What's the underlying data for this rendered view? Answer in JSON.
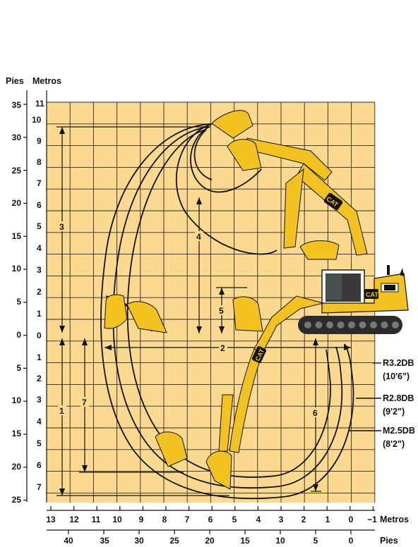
{
  "header": {
    "feet_label": "Pies",
    "meters_label": "Metros"
  },
  "axes": {
    "meters_vertical": [
      "11",
      "10",
      "9",
      "8",
      "7",
      "6",
      "5",
      "4",
      "3",
      "2",
      "1",
      "0",
      "1",
      "2",
      "3",
      "4",
      "5",
      "6",
      "7"
    ],
    "feet_vertical": [
      "35",
      "30",
      "25",
      "20",
      "15",
      "10",
      "5",
      "0",
      "5",
      "10",
      "15",
      "20",
      "25"
    ],
    "meters_horizontal": [
      "13",
      "12",
      "11",
      "10",
      "9",
      "8",
      "7",
      "6",
      "5",
      "4",
      "3",
      "2",
      "1",
      "0",
      "−1"
    ],
    "meters_horizontal_unit": "Metros",
    "feet_horizontal": [
      "40",
      "35",
      "30",
      "25",
      "20",
      "15",
      "10",
      "5",
      "0"
    ],
    "feet_horizontal_unit": "Pies"
  },
  "dimensions": {
    "d1": "1",
    "d2": "2",
    "d3": "3",
    "d4": "4",
    "d5": "5",
    "d6": "6",
    "d7": "7"
  },
  "booms": [
    {
      "code": "R3.2DB",
      "size": "(10'6\")"
    },
    {
      "code": "R2.8DB",
      "size": "(9'2\")"
    },
    {
      "code": "M2.5DB",
      "size": "(8'2\")"
    }
  ],
  "colors": {
    "grid_fill": "#fbd98e",
    "grid_line": "#2a2a2a",
    "machine_yellow": "#f2c320",
    "machine_dark": "#2b2b2b",
    "curve": "#111111"
  },
  "brand": "CAT"
}
